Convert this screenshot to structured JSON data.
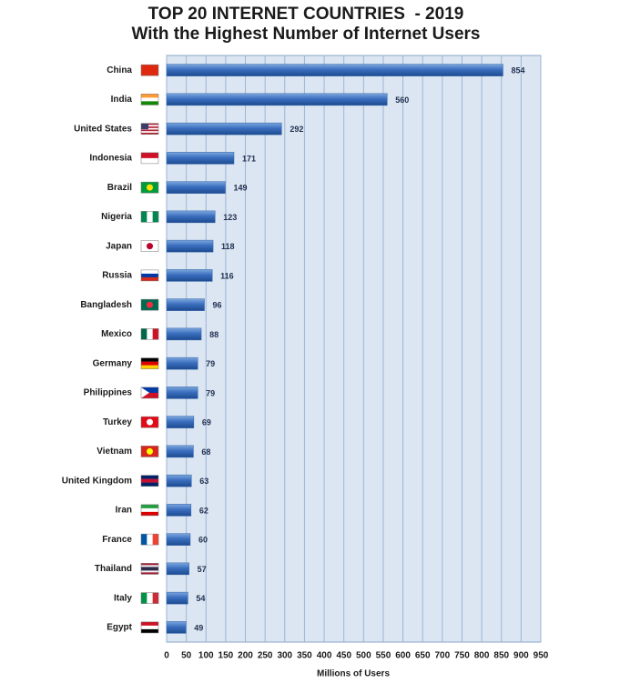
{
  "chart_data": {
    "type": "hbar",
    "title": "TOP 20 INTERNET COUNTRIES  - 2019",
    "subtitle": "With the Highest Number of Internet Users",
    "x_label": "Millions of Users",
    "categories": [
      "China",
      "India",
      "United States",
      "Indonesia",
      "Brazil",
      "Nigeria",
      "Japan",
      "Russia",
      "Bangladesh",
      "Mexico",
      "Germany",
      "Philippines",
      "Turkey",
      "Vietnam",
      "United Kingdom",
      "Iran",
      "France",
      "Thailand",
      "Italy",
      "Egypt"
    ],
    "values": [
      854,
      560,
      292,
      171,
      149,
      123,
      118,
      116,
      96,
      88,
      79,
      79,
      69,
      68,
      63,
      62,
      60,
      57,
      54,
      49
    ],
    "color": "#2f63b0",
    "xlim": [
      0,
      950
    ],
    "xticks": [
      0,
      50,
      100,
      150,
      200,
      250,
      300,
      350,
      400,
      450,
      500,
      550,
      600,
      650,
      700,
      750,
      800,
      850,
      900,
      950
    ],
    "grid": true
  }
}
